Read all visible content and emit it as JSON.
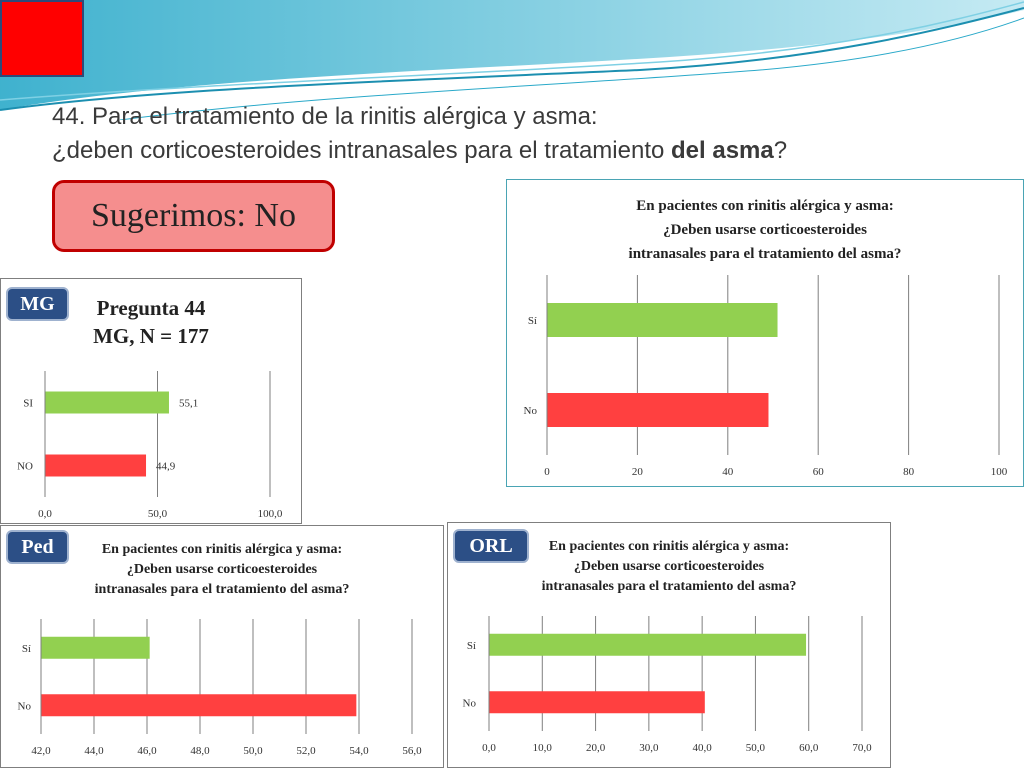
{
  "colors": {
    "green": "#92d050",
    "red": "#ff4040",
    "badge": "#2c4f86",
    "accent_square": "#ff0000"
  },
  "slide": {
    "title_line1": "44. Para el tratamiento de la rinitis alérgica y asma:",
    "title_line2_pre": "¿deben corticoesteroides intranasales para el tratamiento ",
    "title_line2_bold": "del asma",
    "title_line2_post": "?",
    "recommendation": "Sugerimos: No"
  },
  "badges": {
    "mg": "MG",
    "ped": "Ped",
    "orl": "ORL"
  },
  "chart_data": [
    {
      "id": "overall",
      "type": "bar",
      "orientation": "horizontal",
      "title_lines": [
        "En pacientes con rinitis alérgica y asma:",
        "¿Deben usarse corticoesteroides",
        "intranasales para el tratamiento del asma?"
      ],
      "categories": [
        "Sí",
        "No"
      ],
      "values": [
        51,
        49
      ],
      "colors": [
        "#92d050",
        "#ff4040"
      ],
      "xlim": [
        0,
        100
      ],
      "ticks": [
        0,
        20,
        40,
        60,
        80,
        100
      ],
      "tick_labels": [
        "0",
        "20",
        "40",
        "60",
        "80",
        "100"
      ],
      "data_labels": null
    },
    {
      "id": "mg",
      "type": "bar",
      "orientation": "horizontal",
      "title_lines": [
        "Pregunta 44",
        "MG, N = 177"
      ],
      "categories": [
        "SI",
        "NO"
      ],
      "values": [
        55.1,
        44.9
      ],
      "colors": [
        "#92d050",
        "#ff4040"
      ],
      "xlim": [
        0,
        100
      ],
      "ticks": [
        0,
        50,
        100
      ],
      "tick_labels": [
        "0,0",
        "50,0",
        "100,0"
      ],
      "data_labels": [
        "55,1",
        "44,9"
      ]
    },
    {
      "id": "ped",
      "type": "bar",
      "orientation": "horizontal",
      "title_lines": [
        "En pacientes con rinitis alérgica y asma:",
        "¿Deben usarse corticoesteroides",
        "intranasales para el tratamiento del asma?"
      ],
      "categories": [
        "Sí",
        "No"
      ],
      "values": [
        46.1,
        53.9
      ],
      "colors": [
        "#92d050",
        "#ff4040"
      ],
      "xlim": [
        42,
        56
      ],
      "ticks": [
        42,
        44,
        46,
        48,
        50,
        52,
        54,
        56
      ],
      "tick_labels": [
        "42,0",
        "44,0",
        "46,0",
        "48,0",
        "50,0",
        "52,0",
        "54,0",
        "56,0"
      ],
      "data_labels": null
    },
    {
      "id": "orl",
      "type": "bar",
      "orientation": "horizontal",
      "title_lines": [
        "En pacientes con rinitis alérgica y asma:",
        "¿Deben usarse corticoesteroides",
        "intranasales para el tratamiento del asma?"
      ],
      "categories": [
        "Sí",
        "No"
      ],
      "values": [
        59.5,
        40.5
      ],
      "colors": [
        "#92d050",
        "#ff4040"
      ],
      "xlim": [
        0,
        70
      ],
      "ticks": [
        0,
        10,
        20,
        30,
        40,
        50,
        60,
        70
      ],
      "tick_labels": [
        "0,0",
        "10,0",
        "20,0",
        "30,0",
        "40,0",
        "50,0",
        "60,0",
        "70,0"
      ],
      "data_labels": null
    }
  ]
}
